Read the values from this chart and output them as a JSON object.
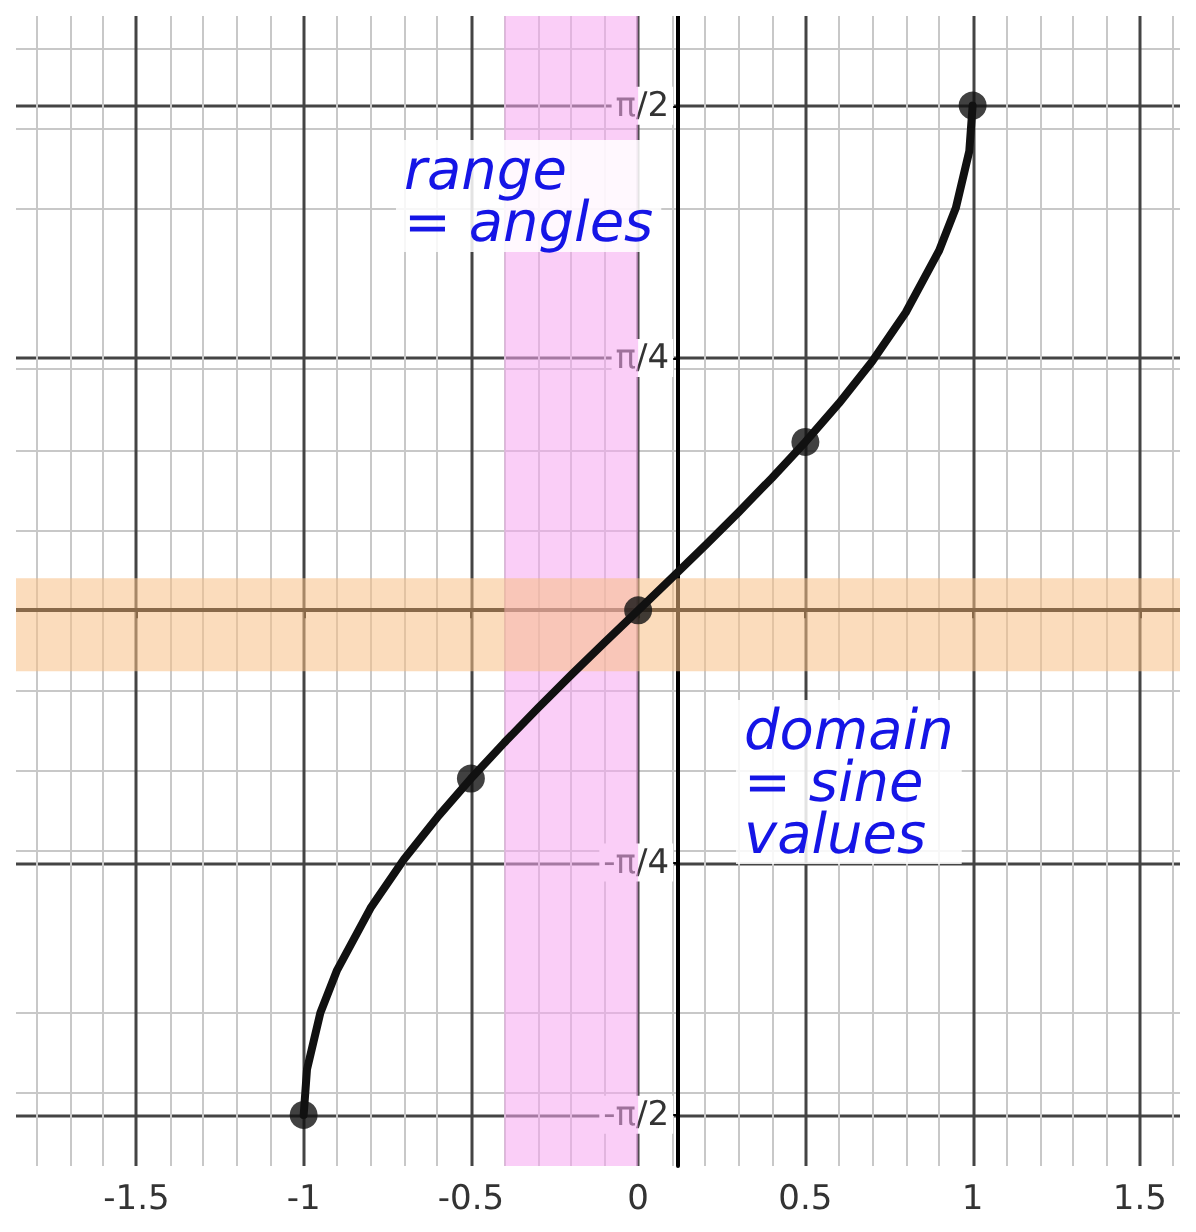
{
  "chart_data": {
    "type": "line",
    "x": [
      -1,
      -0.99,
      -0.95,
      -0.9,
      -0.8,
      -0.7,
      -0.6,
      -0.5,
      -0.4,
      -0.3,
      -0.2,
      -0.1,
      0,
      0.1,
      0.2,
      0.3,
      0.4,
      0.5,
      0.6,
      0.7,
      0.8,
      0.9,
      0.95,
      0.99,
      1
    ],
    "series": [
      {
        "type": "line",
        "color": "#111111",
        "marker": "none",
        "values": [
          -1.571,
          -1.429,
          -1.253,
          -1.12,
          -0.927,
          -0.775,
          -0.644,
          -0.524,
          -0.412,
          -0.305,
          -0.201,
          -0.1,
          0,
          0.1,
          0.201,
          0.305,
          0.412,
          0.524,
          0.644,
          0.775,
          0.927,
          1.12,
          1.253,
          1.429,
          1.571
        ]
      },
      {
        "type": "scatter",
        "color": "#111111",
        "marker": "circle",
        "x": [
          -1,
          -0.5,
          0,
          0.5,
          1
        ],
        "values": [
          -1.571,
          -0.524,
          0,
          0.524,
          1.571
        ]
      }
    ],
    "xlim": [
      -1.86,
      1.62
    ],
    "ylim": [
      -1.73,
      1.85
    ],
    "xticks": [
      -1.5,
      -1,
      -0.5,
      0,
      0.5,
      1,
      1.5
    ],
    "yticks": [
      {
        "value": -1.5708,
        "label": "-π/2"
      },
      {
        "value": -0.7854,
        "label": "-π/4"
      },
      {
        "value": 0.7854,
        "label": "π/4"
      },
      {
        "value": 1.5708,
        "label": "π/2"
      }
    ],
    "grid": true,
    "line_style": "solid",
    "bands": [
      {
        "axis": "x",
        "from": -0.4,
        "to": 0,
        "color": "#f5a6f0"
      },
      {
        "axis": "y",
        "from": -0.19,
        "to": 0.1,
        "color": "#f7bf85"
      }
    ],
    "annotations": [
      "range\n= angles",
      "domain\n= sine\nvalues"
    ]
  }
}
